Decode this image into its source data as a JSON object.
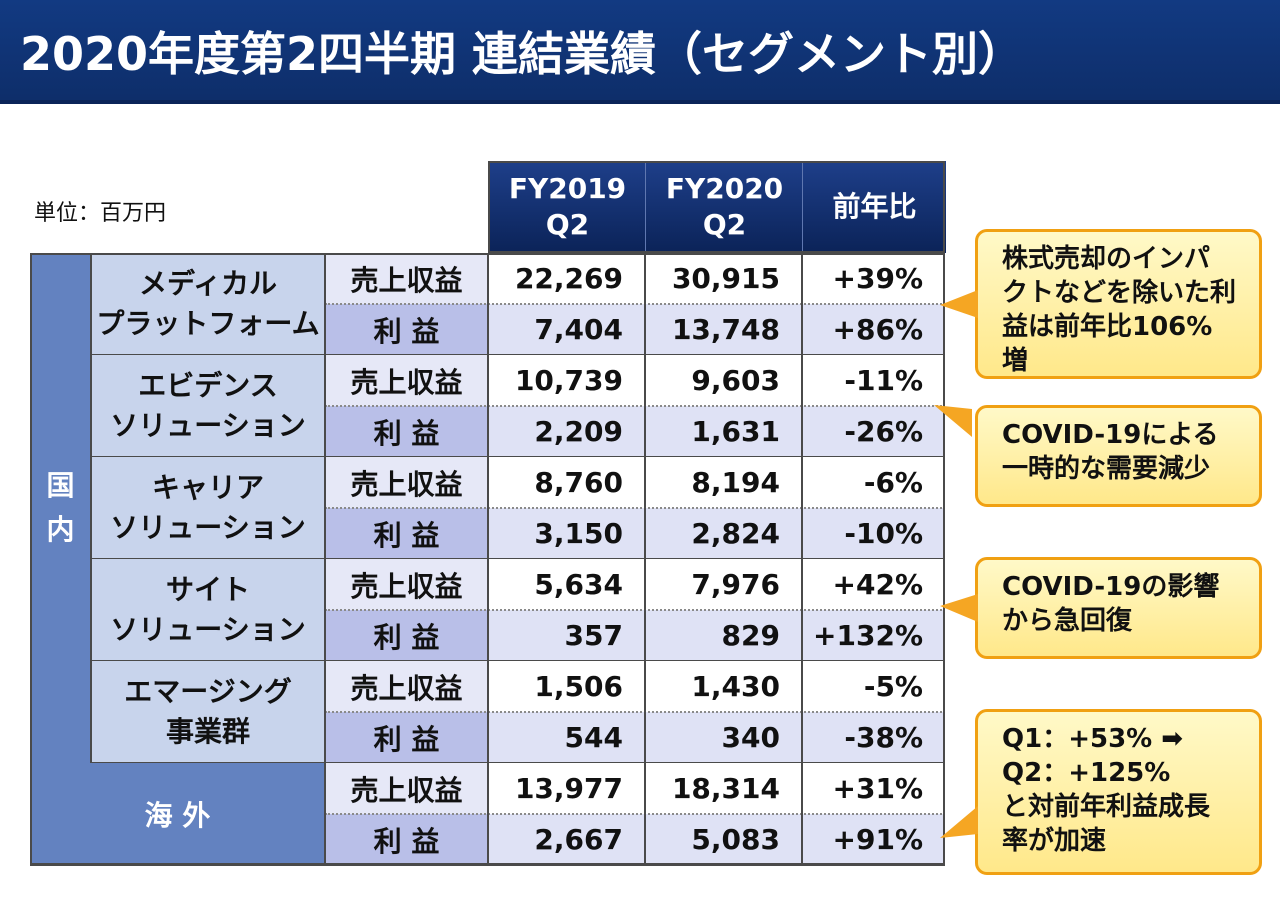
{
  "title": "2020年度第2四半期 連結業績（セグメント別）",
  "unit": "単位：百万円",
  "columns": {
    "fy2019": [
      "FY2019",
      "Q2"
    ],
    "fy2020": [
      "FY2020",
      "Q2"
    ],
    "yoy": "前年比"
  },
  "row_labels": {
    "sales": "売上収益",
    "profit": "利 益"
  },
  "domestic_label": [
    "国",
    "内"
  ],
  "overseas_label": "海 外",
  "segments": [
    {
      "name": [
        "メディカル",
        "プラットフォーム"
      ],
      "sales": {
        "fy2019": "22,269",
        "fy2020": "30,915",
        "yoy": "+39%"
      },
      "profit": {
        "fy2019": "7,404",
        "fy2020": "13,748",
        "yoy": "+86%"
      }
    },
    {
      "name": [
        "エビデンス",
        "ソリューション"
      ],
      "sales": {
        "fy2019": "10,739",
        "fy2020": "9,603",
        "yoy": "-11%"
      },
      "profit": {
        "fy2019": "2,209",
        "fy2020": "1,631",
        "yoy": "-26%"
      }
    },
    {
      "name": [
        "キャリア",
        "ソリューション"
      ],
      "sales": {
        "fy2019": "8,760",
        "fy2020": "8,194",
        "yoy": "-6%"
      },
      "profit": {
        "fy2019": "3,150",
        "fy2020": "2,824",
        "yoy": "-10%"
      }
    },
    {
      "name": [
        "サイト",
        "ソリューション"
      ],
      "sales": {
        "fy2019": "5,634",
        "fy2020": "7,976",
        "yoy": "+42%"
      },
      "profit": {
        "fy2019": "357",
        "fy2020": "829",
        "yoy": "+132%"
      }
    },
    {
      "name": [
        "エマージング",
        "事業群"
      ],
      "sales": {
        "fy2019": "1,506",
        "fy2020": "1,430",
        "yoy": "-5%"
      },
      "profit": {
        "fy2019": "544",
        "fy2020": "340",
        "yoy": "-38%"
      }
    },
    {
      "name": [
        "海 外"
      ],
      "sales": {
        "fy2019": "13,977",
        "fy2020": "18,314",
        "yoy": "+31%"
      },
      "profit": {
        "fy2019": "2,667",
        "fy2020": "5,083",
        "yoy": "+91%"
      }
    }
  ],
  "callouts": [
    {
      "lines": [
        "株式売却のインパ",
        "クトなどを除いた利",
        "益は前年比106%",
        "増"
      ]
    },
    {
      "lines": [
        "COVID-19による",
        "一時的な需要減少"
      ]
    },
    {
      "lines": [
        "COVID-19の影響",
        "から急回復"
      ]
    },
    {
      "lines": [
        "Q1：+53% ➡",
        "Q2：+125%",
        "と対前年利益成長",
        "率が加速"
      ]
    }
  ],
  "colors": {
    "title_bg": "#123a82",
    "header_bg": "#1e3f8a",
    "side_bg": "#6382c0",
    "segment_bg": "#c8d4ec",
    "profit_bg": "#dfe2f5",
    "callout_border": "#f0a012",
    "callout_fill": "#fff3a8"
  }
}
